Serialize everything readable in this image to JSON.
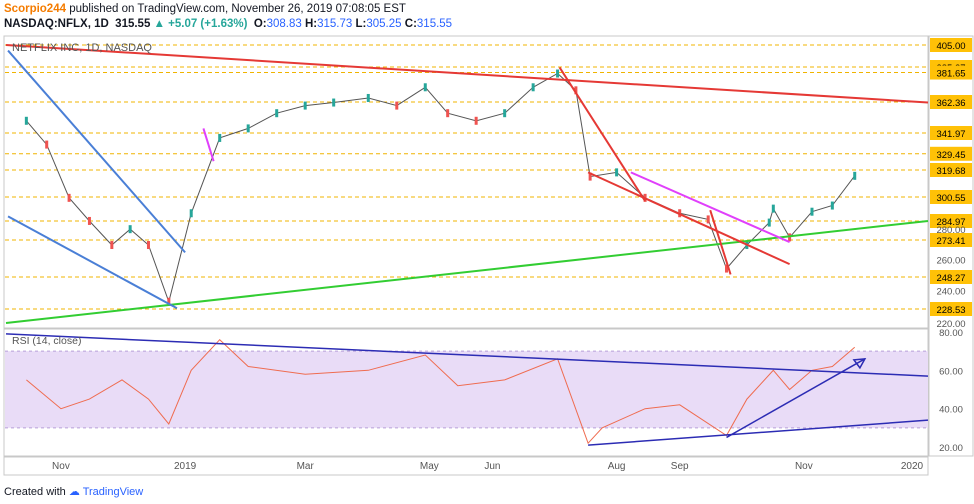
{
  "header": {
    "author": "Scorpio244",
    "published_text": "published on TradingView.com, November 26, 2019 07:08:05 EST",
    "symbol": "NASDAQ:NFLX, 1D",
    "last": "315.55",
    "change": "▲ +5.07 (+1.63%)",
    "o_label": "O:",
    "o_value": "308.83",
    "h_label": "H:",
    "h_value": "315.73",
    "l_label": "L:",
    "l_value": "305.25",
    "c_label": "C:",
    "c_value": "315.55"
  },
  "chart_data": {
    "type": "candlestick",
    "title": "NETFLIX INC, 1D, NASDAQ",
    "price_levels": [
      "405.00",
      "385.27",
      "381.65",
      "362.36",
      "341.97",
      "329.45",
      "319.68",
      "300.55",
      "284.97",
      "273.41",
      "248.27",
      "228.53"
    ],
    "y_ticks": [
      "280.00",
      "260.00",
      "240.00",
      "220.00"
    ],
    "current_price_label": "405.00",
    "x_ticks": [
      "Nov",
      "2019",
      "Mar",
      "May",
      "Jun",
      "Aug",
      "Sep",
      "Nov",
      "2020"
    ],
    "price_series": [
      {
        "d": "2018-10-15",
        "c": 350
      },
      {
        "d": "2018-10-25",
        "c": 335
      },
      {
        "d": "2018-11-05",
        "c": 300
      },
      {
        "d": "2018-11-15",
        "c": 285
      },
      {
        "d": "2018-11-26",
        "c": 270
      },
      {
        "d": "2018-12-05",
        "c": 280
      },
      {
        "d": "2018-12-14",
        "c": 270
      },
      {
        "d": "2018-12-24",
        "c": 233
      },
      {
        "d": "2019-01-04",
        "c": 290
      },
      {
        "d": "2019-01-18",
        "c": 339
      },
      {
        "d": "2019-02-01",
        "c": 345
      },
      {
        "d": "2019-02-15",
        "c": 355
      },
      {
        "d": "2019-03-01",
        "c": 360
      },
      {
        "d": "2019-03-15",
        "c": 362
      },
      {
        "d": "2019-04-01",
        "c": 365
      },
      {
        "d": "2019-04-15",
        "c": 360
      },
      {
        "d": "2019-04-29",
        "c": 372
      },
      {
        "d": "2019-05-10",
        "c": 355
      },
      {
        "d": "2019-05-24",
        "c": 350
      },
      {
        "d": "2019-06-07",
        "c": 355
      },
      {
        "d": "2019-06-21",
        "c": 372
      },
      {
        "d": "2019-07-03",
        "c": 381
      },
      {
        "d": "2019-07-12",
        "c": 370
      },
      {
        "d": "2019-07-19",
        "c": 315
      },
      {
        "d": "2019-08-01",
        "c": 318
      },
      {
        "d": "2019-08-15",
        "c": 300
      },
      {
        "d": "2019-09-01",
        "c": 290
      },
      {
        "d": "2019-09-15",
        "c": 286
      },
      {
        "d": "2019-09-24",
        "c": 254
      },
      {
        "d": "2019-10-04",
        "c": 270
      },
      {
        "d": "2019-10-15",
        "c": 284
      },
      {
        "d": "2019-10-17",
        "c": 293
      },
      {
        "d": "2019-10-25",
        "c": 275
      },
      {
        "d": "2019-11-05",
        "c": 291
      },
      {
        "d": "2019-11-15",
        "c": 295
      },
      {
        "d": "2019-11-26",
        "c": 315.55
      }
    ],
    "trendlines": [
      {
        "name": "red-resistance",
        "color": "#e53935",
        "points": [
          [
            "2018-10-05",
            405
          ],
          [
            "2020-01-01",
            362
          ]
        ]
      },
      {
        "name": "green-support",
        "color": "#32cd32",
        "points": [
          [
            "2018-10-05",
            213
          ],
          [
            "2020-01-01",
            285
          ]
        ]
      },
      {
        "name": "blue-channel-upper",
        "color": "#4a7fd6",
        "points": [
          [
            "2018-10-06",
            400
          ],
          [
            "2019-01-01",
            265
          ]
        ]
      },
      {
        "name": "blue-channel-lower",
        "color": "#4a7fd6",
        "points": [
          [
            "2018-10-06",
            288
          ],
          [
            "2018-12-28",
            229
          ]
        ]
      },
      {
        "name": "red-drop",
        "color": "#e53935",
        "points": [
          [
            "2019-07-04",
            385
          ],
          [
            "2019-08-15",
            298
          ]
        ]
      },
      {
        "name": "red-channel-lower",
        "color": "#e53935",
        "points": [
          [
            "2019-07-18",
            318
          ],
          [
            "2019-10-25",
            257
          ]
        ]
      },
      {
        "name": "red-spike",
        "color": "#e53935",
        "points": [
          [
            "2019-09-16",
            292
          ],
          [
            "2019-09-26",
            250
          ]
        ]
      },
      {
        "name": "magenta-upper",
        "color": "#e040fb",
        "points": [
          [
            "2019-08-08",
            318
          ],
          [
            "2019-10-25",
            272
          ]
        ]
      },
      {
        "name": "magenta-pole",
        "color": "#e040fb",
        "points": [
          [
            "2019-01-10",
            345
          ],
          [
            "2019-01-15",
            325
          ]
        ]
      }
    ],
    "rsi": {
      "label": "RSI (14, close)",
      "y_ticks": [
        "80.00",
        "60.00",
        "40.00",
        "20.00"
      ],
      "band": [
        30,
        70
      ],
      "series": [
        {
          "d": "2018-10-15",
          "v": 55
        },
        {
          "d": "2018-11-01",
          "v": 40
        },
        {
          "d": "2018-11-15",
          "v": 45
        },
        {
          "d": "2018-12-01",
          "v": 55
        },
        {
          "d": "2018-12-14",
          "v": 45
        },
        {
          "d": "2018-12-24",
          "v": 32
        },
        {
          "d": "2019-01-04",
          "v": 60
        },
        {
          "d": "2019-01-18",
          "v": 76
        },
        {
          "d": "2019-02-01",
          "v": 62
        },
        {
          "d": "2019-03-01",
          "v": 58
        },
        {
          "d": "2019-04-01",
          "v": 60
        },
        {
          "d": "2019-04-29",
          "v": 68
        },
        {
          "d": "2019-05-15",
          "v": 52
        },
        {
          "d": "2019-06-07",
          "v": 55
        },
        {
          "d": "2019-07-03",
          "v": 66
        },
        {
          "d": "2019-07-18",
          "v": 22
        },
        {
          "d": "2019-07-25",
          "v": 30
        },
        {
          "d": "2019-08-15",
          "v": 40
        },
        {
          "d": "2019-09-01",
          "v": 42
        },
        {
          "d": "2019-09-24",
          "v": 26
        },
        {
          "d": "2019-10-04",
          "v": 45
        },
        {
          "d": "2019-10-17",
          "v": 60
        },
        {
          "d": "2019-10-25",
          "v": 50
        },
        {
          "d": "2019-11-05",
          "v": 60
        },
        {
          "d": "2019-11-15",
          "v": 62
        },
        {
          "d": "2019-11-26",
          "v": 72
        }
      ],
      "trendlines": [
        {
          "name": "rsi-down-navy",
          "color": "#2c2cb4",
          "points": [
            [
              "2018-10-05",
              79
            ],
            [
              "2020-01-01",
              57
            ]
          ]
        },
        {
          "name": "rsi-support",
          "color": "#2c2cb4",
          "points": [
            [
              "2019-07-18",
              21
            ],
            [
              "2020-01-01",
              34
            ]
          ]
        },
        {
          "name": "rsi-arrow",
          "color": "#2c2cb4",
          "points": [
            [
              "2019-09-24",
              25
            ],
            [
              "2019-12-01",
              66
            ]
          ]
        }
      ]
    }
  },
  "footer": {
    "created_with": "Created with",
    "brand": "TradingView"
  }
}
